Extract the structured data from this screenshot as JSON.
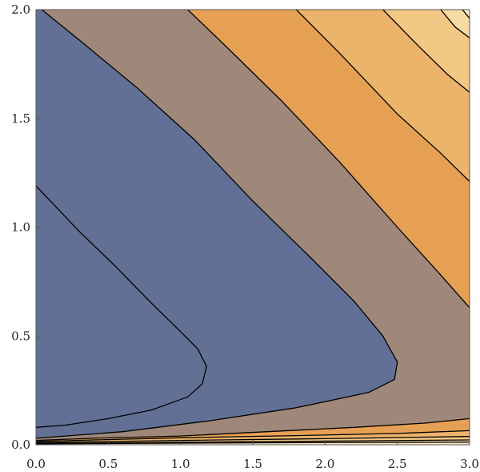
{
  "chart_data": {
    "type": "contour",
    "title": "",
    "xlabel": "",
    "ylabel": "",
    "xlim": [
      0,
      3
    ],
    "ylim": [
      0,
      2
    ],
    "x_ticks": [
      "0.0",
      "0.5",
      "1.0",
      "1.5",
      "2.0",
      "2.5",
      "3.0"
    ],
    "y_ticks": [
      "0.0",
      "0.5",
      "1.0",
      "1.5",
      "2.0"
    ],
    "grid": false,
    "legend": "none",
    "bands": [
      {
        "fill": "#2b5891",
        "region": [
          [
            0,
            1.19
          ],
          [
            0.1,
            1.12
          ],
          [
            0.3,
            0.98
          ],
          [
            0.55,
            0.82
          ],
          [
            0.8,
            0.65
          ],
          [
            1.0,
            0.52
          ],
          [
            1.12,
            0.44
          ],
          [
            1.18,
            0.36
          ],
          [
            1.15,
            0.28
          ],
          [
            1.05,
            0.22
          ],
          [
            0.8,
            0.16
          ],
          [
            0.5,
            0.12
          ],
          [
            0.2,
            0.09
          ],
          [
            0,
            0.08
          ]
        ]
      },
      {
        "fill": "#627096",
        "region": [
          [
            0.04,
            2.0
          ],
          [
            0.3,
            1.86
          ],
          [
            0.7,
            1.64
          ],
          [
            1.1,
            1.4
          ],
          [
            1.5,
            1.12
          ],
          [
            1.9,
            0.86
          ],
          [
            2.2,
            0.66
          ],
          [
            2.4,
            0.5
          ],
          [
            2.5,
            0.38
          ],
          [
            2.48,
            0.3
          ],
          [
            2.3,
            0.24
          ],
          [
            1.8,
            0.17
          ],
          [
            1.2,
            0.11
          ],
          [
            0.6,
            0.06
          ],
          [
            0,
            0.03
          ],
          [
            0,
            1.19
          ],
          [
            0.1,
            1.12
          ],
          [
            0.3,
            0.98
          ],
          [
            0.55,
            0.82
          ],
          [
            0.8,
            0.65
          ],
          [
            1.0,
            0.52
          ],
          [
            1.12,
            0.44
          ],
          [
            1.18,
            0.36
          ],
          [
            1.15,
            0.28
          ],
          [
            1.05,
            0.22
          ],
          [
            0.8,
            0.16
          ],
          [
            0.5,
            0.12
          ],
          [
            0.2,
            0.09
          ],
          [
            0,
            0.08
          ],
          [
            0,
            2.0
          ]
        ]
      },
      {
        "fill": "#9f8879",
        "region": [
          [
            1.05,
            2.0
          ],
          [
            1.3,
            1.84
          ],
          [
            1.7,
            1.58
          ],
          [
            2.1,
            1.3
          ],
          [
            2.5,
            1.0
          ],
          [
            2.8,
            0.78
          ],
          [
            3.0,
            0.63
          ],
          [
            3.0,
            0.12
          ],
          [
            2.7,
            0.1
          ],
          [
            2.2,
            0.08
          ],
          [
            1.6,
            0.06
          ],
          [
            1.0,
            0.04
          ],
          [
            0.4,
            0.03
          ],
          [
            0,
            0.02
          ],
          [
            0,
            0.03
          ],
          [
            0.6,
            0.06
          ],
          [
            1.2,
            0.11
          ],
          [
            1.8,
            0.17
          ],
          [
            2.3,
            0.24
          ],
          [
            2.48,
            0.3
          ],
          [
            2.5,
            0.38
          ],
          [
            2.4,
            0.5
          ],
          [
            2.2,
            0.66
          ],
          [
            1.9,
            0.86
          ],
          [
            1.5,
            1.12
          ],
          [
            1.1,
            1.4
          ],
          [
            0.7,
            1.64
          ],
          [
            0.3,
            1.86
          ],
          [
            0.04,
            2.0
          ]
        ]
      },
      {
        "fill": "#e6a054",
        "region": [
          [
            1.8,
            2.0
          ],
          [
            2.1,
            1.8
          ],
          [
            2.5,
            1.52
          ],
          [
            2.8,
            1.34
          ],
          [
            3.0,
            1.21
          ],
          [
            3.0,
            0.63
          ],
          [
            2.8,
            0.78
          ],
          [
            2.5,
            1.0
          ],
          [
            2.1,
            1.3
          ],
          [
            1.7,
            1.58
          ],
          [
            1.3,
            1.84
          ],
          [
            1.05,
            2.0
          ]
        ]
      },
      {
        "fill": "#e6a054",
        "region": [
          [
            0,
            0.02
          ],
          [
            0.4,
            0.03
          ],
          [
            1.0,
            0.04
          ],
          [
            1.6,
            0.06
          ],
          [
            2.2,
            0.08
          ],
          [
            2.7,
            0.1
          ],
          [
            3.0,
            0.12
          ],
          [
            3.0,
            0.065
          ],
          [
            2.5,
            0.052
          ],
          [
            1.8,
            0.042
          ],
          [
            1.0,
            0.032
          ],
          [
            0.4,
            0.022
          ],
          [
            0,
            0.015
          ]
        ]
      },
      {
        "fill": "#ecb36a",
        "region": [
          [
            2.4,
            2.0
          ],
          [
            2.65,
            1.83
          ],
          [
            2.85,
            1.7
          ],
          [
            3.0,
            1.62
          ],
          [
            3.0,
            1.21
          ],
          [
            2.8,
            1.34
          ],
          [
            2.5,
            1.52
          ],
          [
            2.1,
            1.8
          ],
          [
            1.8,
            2.0
          ]
        ]
      },
      {
        "fill": "#ecb36a",
        "region": [
          [
            0,
            0.015
          ],
          [
            0.4,
            0.022
          ],
          [
            1.0,
            0.032
          ],
          [
            1.8,
            0.042
          ],
          [
            2.5,
            0.052
          ],
          [
            3.0,
            0.065
          ],
          [
            3.0,
            0.038
          ],
          [
            2.0,
            0.028
          ],
          [
            1.0,
            0.02
          ],
          [
            0,
            0.01
          ]
        ]
      },
      {
        "fill": "#f3c784",
        "region": [
          [
            2.8,
            2.0
          ],
          [
            2.9,
            1.92
          ],
          [
            3.0,
            1.87
          ],
          [
            3.0,
            1.62
          ],
          [
            2.85,
            1.7
          ],
          [
            2.65,
            1.83
          ],
          [
            2.4,
            2.0
          ]
        ]
      },
      {
        "fill": "#f3c784",
        "region": [
          [
            0,
            0.01
          ],
          [
            1.0,
            0.02
          ],
          [
            2.0,
            0.028
          ],
          [
            3.0,
            0.038
          ],
          [
            3.0,
            0.022
          ],
          [
            1.5,
            0.014
          ],
          [
            0,
            0.006
          ]
        ]
      },
      {
        "fill": "#f7dba4",
        "region": [
          [
            2.95,
            2.0
          ],
          [
            3.0,
            1.96
          ],
          [
            3.0,
            1.87
          ],
          [
            2.9,
            1.92
          ],
          [
            2.8,
            2.0
          ]
        ]
      },
      {
        "fill": "#f7dba4",
        "region": [
          [
            0,
            0.006
          ],
          [
            1.5,
            0.014
          ],
          [
            3.0,
            0.022
          ],
          [
            3.0,
            0.012
          ],
          [
            1.5,
            0.009
          ],
          [
            0,
            0.004
          ]
        ]
      },
      {
        "fill": "#fbe9c4",
        "region": [
          [
            3.0,
            2.0
          ],
          [
            3.0,
            1.96
          ],
          [
            2.95,
            2.0
          ]
        ]
      },
      {
        "fill": "#fbe9c4",
        "region": [
          [
            0,
            0.004
          ],
          [
            1.5,
            0.009
          ],
          [
            3.0,
            0.012
          ],
          [
            3.0,
            0.0
          ],
          [
            0,
            0.0
          ]
        ]
      }
    ],
    "contours": [
      [
        [
          0,
          1.19
        ],
        [
          0.1,
          1.12
        ],
        [
          0.3,
          0.98
        ],
        [
          0.55,
          0.82
        ],
        [
          0.8,
          0.65
        ],
        [
          1.0,
          0.52
        ],
        [
          1.12,
          0.44
        ],
        [
          1.18,
          0.36
        ],
        [
          1.15,
          0.28
        ],
        [
          1.05,
          0.22
        ],
        [
          0.8,
          0.16
        ],
        [
          0.5,
          0.12
        ],
        [
          0.2,
          0.09
        ],
        [
          0,
          0.08
        ]
      ],
      [
        [
          0.04,
          2.0
        ],
        [
          0.3,
          1.86
        ],
        [
          0.7,
          1.64
        ],
        [
          1.1,
          1.4
        ],
        [
          1.5,
          1.12
        ],
        [
          1.9,
          0.86
        ],
        [
          2.2,
          0.66
        ],
        [
          2.4,
          0.5
        ],
        [
          2.5,
          0.38
        ],
        [
          2.48,
          0.3
        ],
        [
          2.3,
          0.24
        ],
        [
          1.8,
          0.17
        ],
        [
          1.2,
          0.11
        ],
        [
          0.6,
          0.06
        ],
        [
          0,
          0.03
        ]
      ],
      [
        [
          1.05,
          2.0
        ],
        [
          1.3,
          1.84
        ],
        [
          1.7,
          1.58
        ],
        [
          2.1,
          1.3
        ],
        [
          2.5,
          1.0
        ],
        [
          2.8,
          0.78
        ],
        [
          3.0,
          0.63
        ]
      ],
      [
        [
          3.0,
          0.12
        ],
        [
          2.7,
          0.1
        ],
        [
          2.2,
          0.08
        ],
        [
          1.6,
          0.06
        ],
        [
          1.0,
          0.04
        ],
        [
          0.4,
          0.03
        ],
        [
          0,
          0.02
        ]
      ],
      [
        [
          1.8,
          2.0
        ],
        [
          2.1,
          1.8
        ],
        [
          2.5,
          1.52
        ],
        [
          2.8,
          1.34
        ],
        [
          3.0,
          1.21
        ]
      ],
      [
        [
          0,
          0.015
        ],
        [
          0.4,
          0.022
        ],
        [
          1.0,
          0.032
        ],
        [
          1.8,
          0.042
        ],
        [
          2.5,
          0.052
        ],
        [
          3.0,
          0.065
        ]
      ],
      [
        [
          2.4,
          2.0
        ],
        [
          2.65,
          1.83
        ],
        [
          2.85,
          1.7
        ],
        [
          3.0,
          1.62
        ]
      ],
      [
        [
          0,
          0.01
        ],
        [
          1.0,
          0.02
        ],
        [
          2.0,
          0.028
        ],
        [
          3.0,
          0.038
        ]
      ],
      [
        [
          2.8,
          2.0
        ],
        [
          2.9,
          1.92
        ],
        [
          3.0,
          1.87
        ]
      ],
      [
        [
          0,
          0.006
        ],
        [
          1.5,
          0.014
        ],
        [
          3.0,
          0.022
        ]
      ],
      [
        [
          2.95,
          2.0
        ],
        [
          3.0,
          1.96
        ]
      ],
      [
        [
          0,
          0.004
        ],
        [
          1.5,
          0.009
        ],
        [
          3.0,
          0.012
        ]
      ]
    ]
  }
}
